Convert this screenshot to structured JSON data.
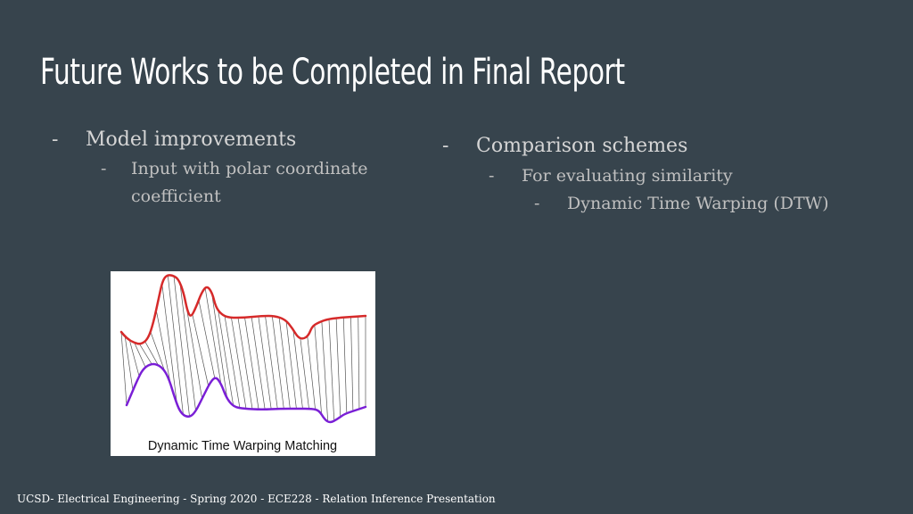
{
  "slide": {
    "title": "Future Works to be Completed in Final Report",
    "left_column": {
      "heading": "Model improvements",
      "sub_items": [
        "Input with polar coordinate",
        "coefficient"
      ]
    },
    "right_column": {
      "heading": "Comparison schemes",
      "sub_item": "For evaluating similarity",
      "sub_sub_item": "Dynamic Time Warping (DTW)"
    },
    "bullet_marker": "-",
    "figure": {
      "caption": "Dynamic Time Warping Matching",
      "upper_curve_color": "#d62a2a",
      "lower_curve_color": "#7a1fd6"
    },
    "footer": "UCSD- Electrical Engineering - Spring 2020 - ECE228 - Relation Inference Presentation"
  }
}
